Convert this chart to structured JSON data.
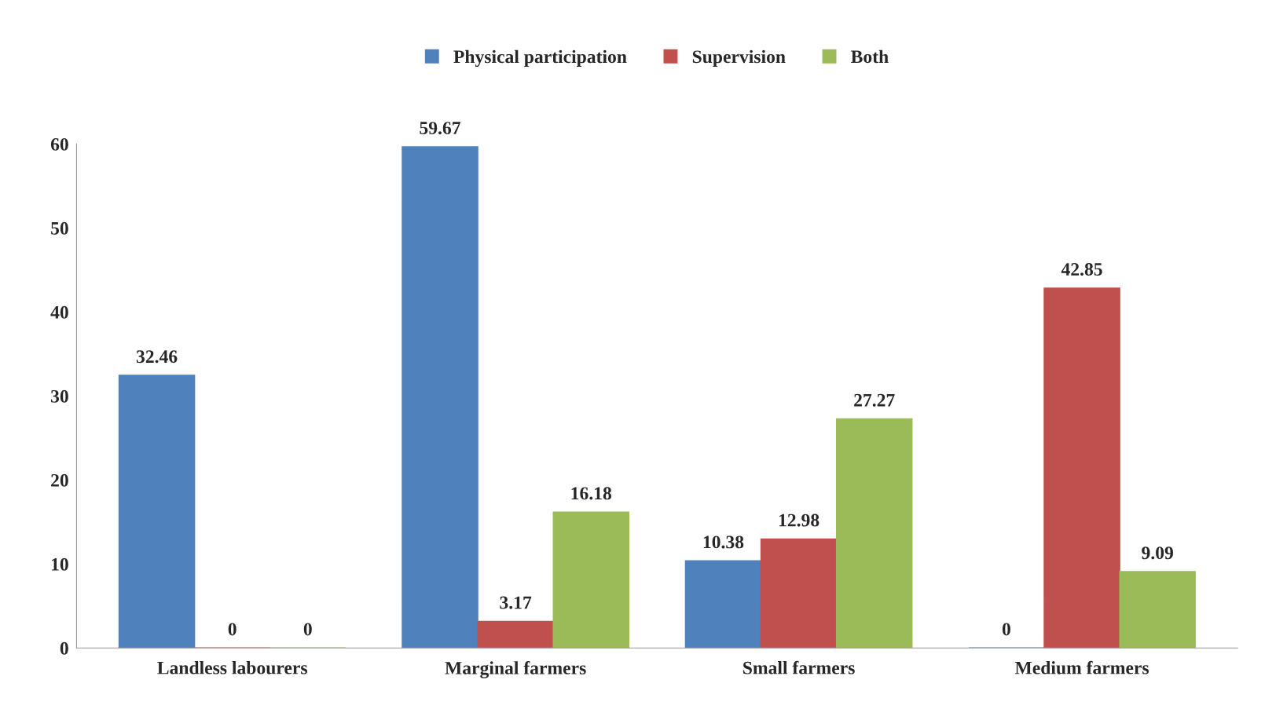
{
  "chart_data": {
    "type": "bar",
    "categories": [
      "Landless labourers",
      "Marginal farmers",
      "Small farmers",
      "Medium farmers"
    ],
    "series": [
      {
        "name": "Physical participation",
        "color": "#4f81bd",
        "values": [
          32.46,
          59.67,
          10.38,
          0
        ]
      },
      {
        "name": "Supervision",
        "color": "#c0504d",
        "values": [
          0,
          3.17,
          12.98,
          42.85
        ]
      },
      {
        "name": "Both",
        "color": "#9bbb59",
        "values": [
          0,
          16.18,
          27.27,
          9.09
        ]
      }
    ],
    "ylim": [
      0,
      60
    ],
    "yticks": [
      0,
      10,
      20,
      30,
      40,
      50,
      60
    ],
    "grid": false,
    "legend": "top",
    "data_labels": true
  }
}
